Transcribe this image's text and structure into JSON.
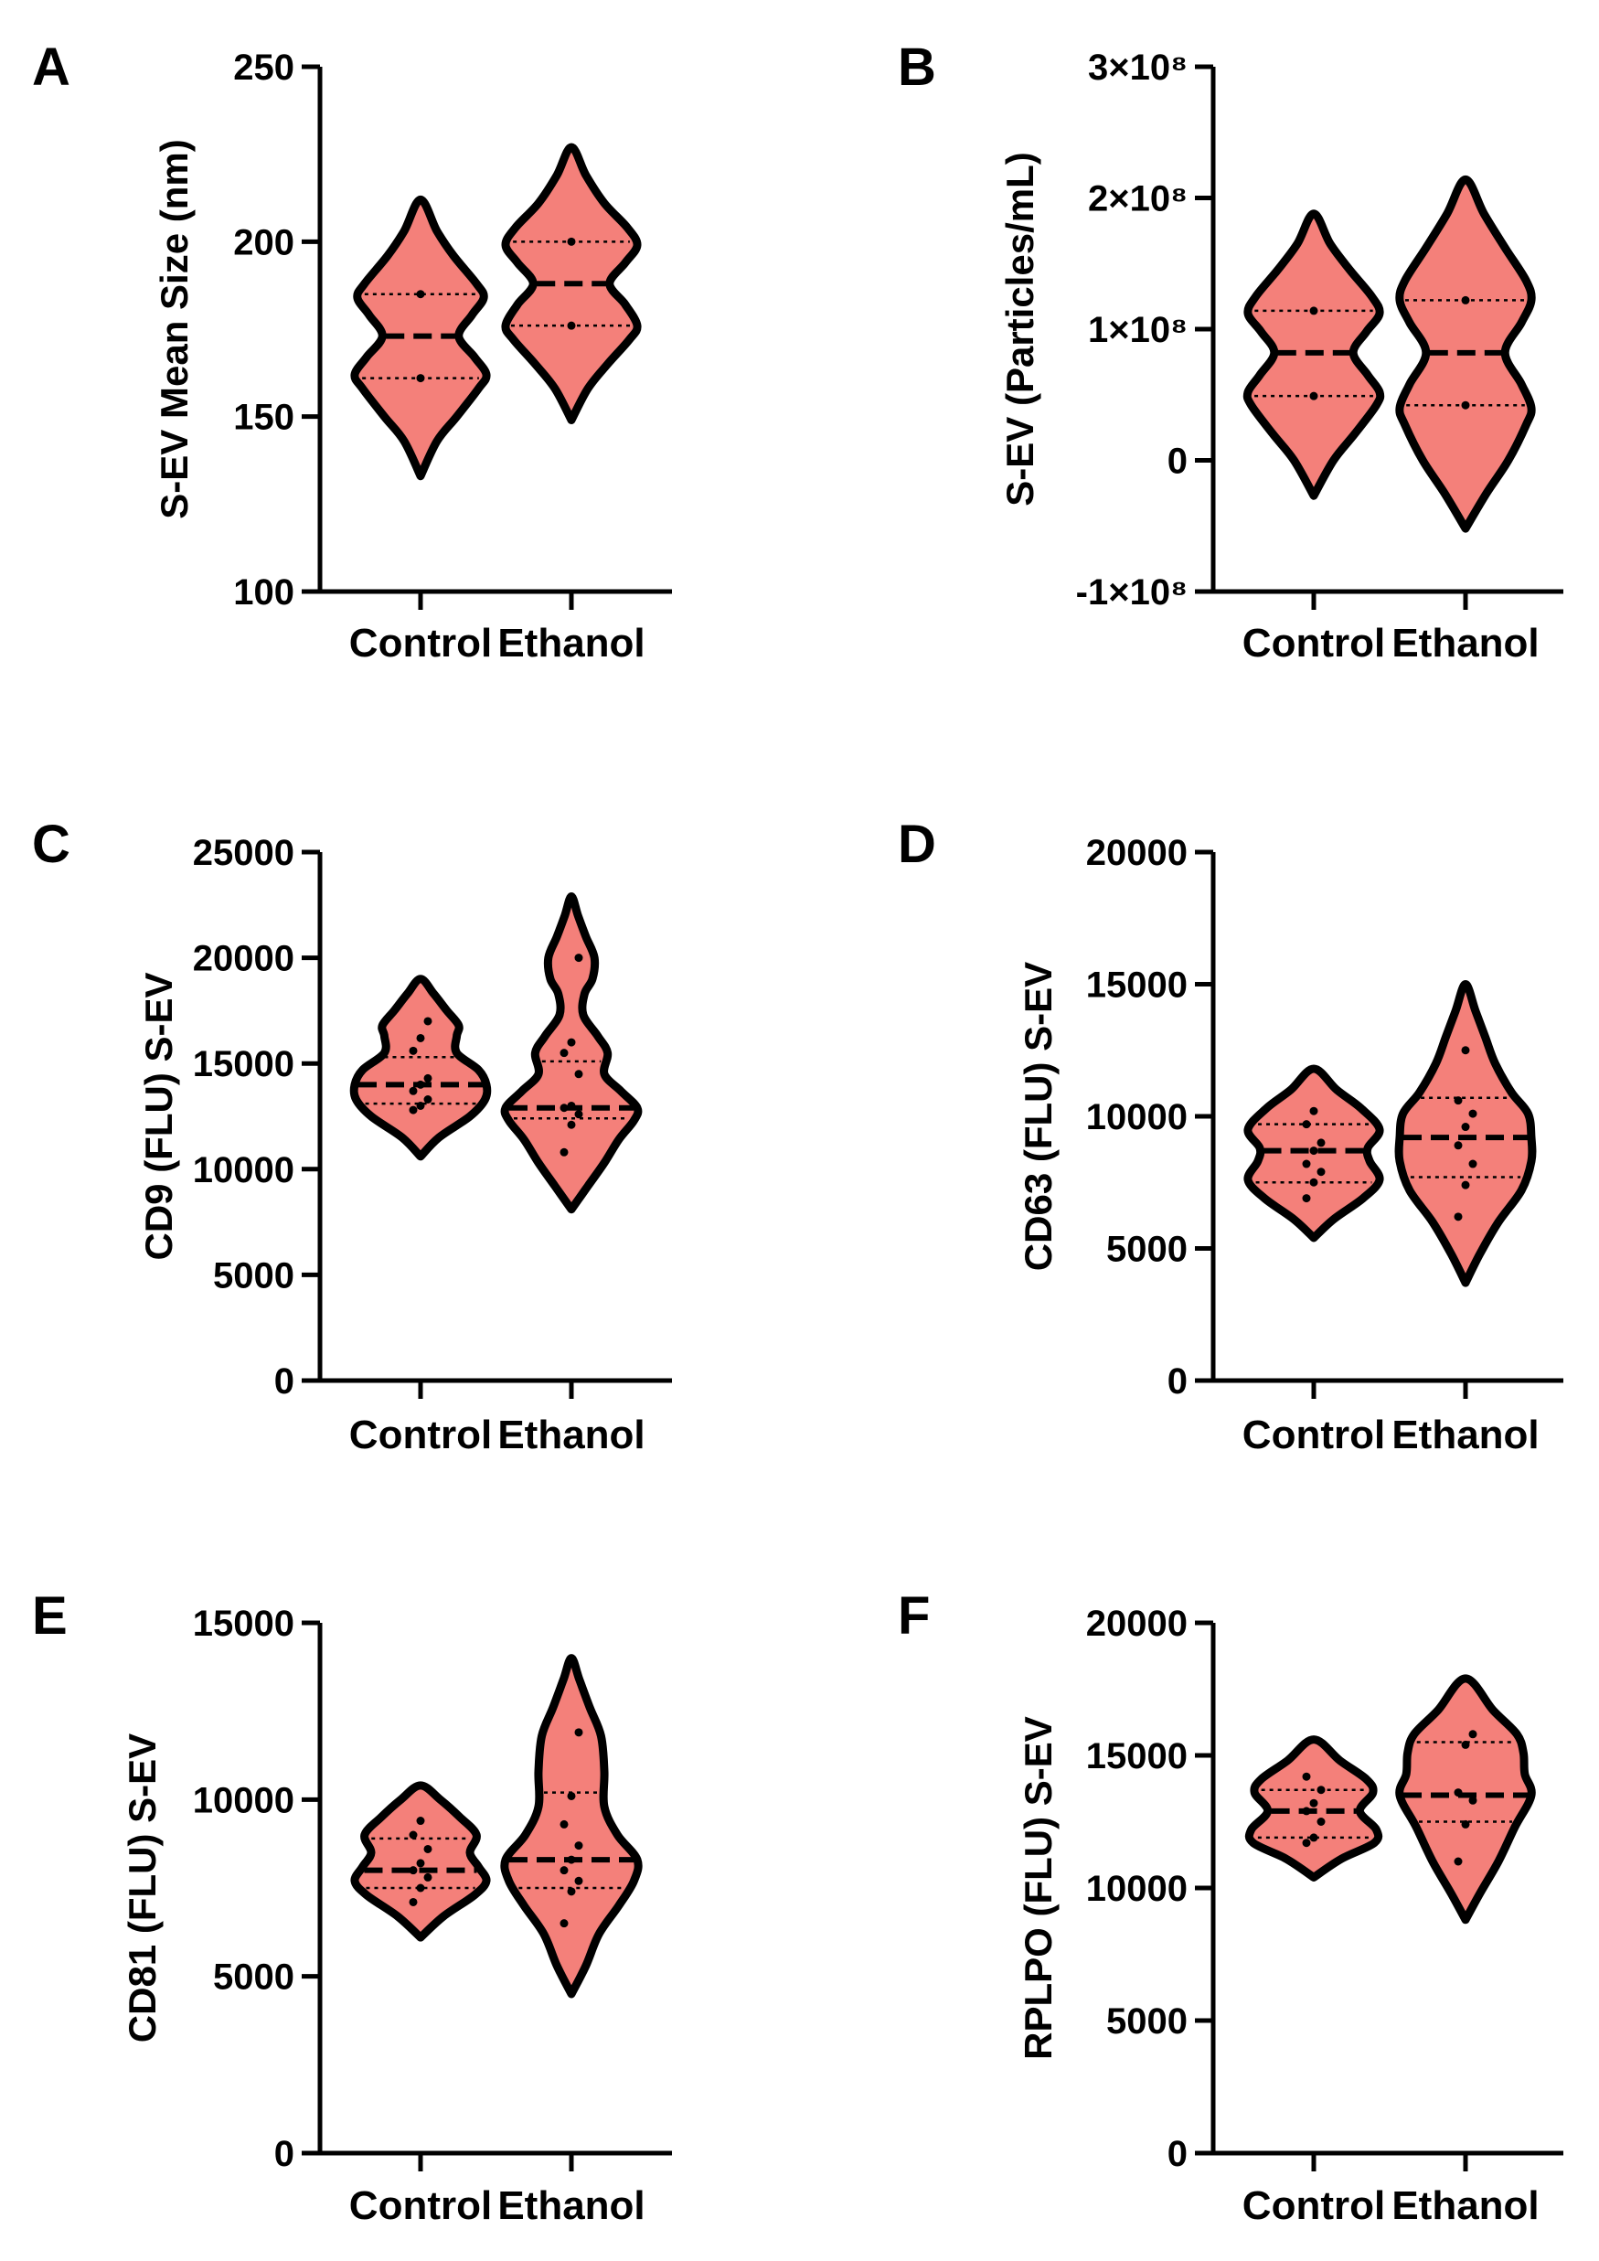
{
  "colors": {
    "violin_fill": "#f4807a",
    "outline": "#000000"
  },
  "chart_data": [
    {
      "type": "violin",
      "panel": "A",
      "ylabel": "S-EV Mean Size (nm)",
      "categories": [
        "Control",
        "Ethanol"
      ],
      "ylim": [
        100,
        250
      ],
      "yticks": [
        100,
        150,
        200,
        250
      ],
      "ytick_labels": [
        "100",
        "150",
        "200",
        "250"
      ],
      "series": [
        {
          "name": "Control",
          "min": 133,
          "max": 212,
          "median": 173,
          "q1": 161,
          "q3": 185,
          "points": [
            161,
            185
          ],
          "shape": [
            [
              133,
              0
            ],
            [
              143,
              0.25
            ],
            [
              150,
              0.55
            ],
            [
              158,
              0.88
            ],
            [
              162,
              1
            ],
            [
              167,
              0.82
            ],
            [
              173,
              0.58
            ],
            [
              179,
              0.78
            ],
            [
              184,
              0.96
            ],
            [
              188,
              0.85
            ],
            [
              196,
              0.5
            ],
            [
              203,
              0.25
            ],
            [
              212,
              0
            ]
          ]
        },
        {
          "name": "Ethanol",
          "min": 149,
          "max": 227,
          "median": 188,
          "q1": 176,
          "q3": 200,
          "points": [
            176,
            200
          ],
          "shape": [
            [
              149,
              0
            ],
            [
              158,
              0.25
            ],
            [
              165,
              0.55
            ],
            [
              172,
              0.88
            ],
            [
              176,
              1
            ],
            [
              182,
              0.82
            ],
            [
              188,
              0.58
            ],
            [
              194,
              0.82
            ],
            [
              199,
              1
            ],
            [
              204,
              0.85
            ],
            [
              211,
              0.5
            ],
            [
              219,
              0.22
            ],
            [
              227,
              0
            ]
          ]
        }
      ]
    },
    {
      "type": "violin",
      "panel": "B",
      "ylabel": "S-EV (Particles/mL)",
      "categories": [
        "Control",
        "Ethanol"
      ],
      "ylim": [
        -100000000.0,
        300000000.0
      ],
      "yticks": [
        -100000000.0,
        0,
        100000000.0,
        200000000.0,
        300000000.0
      ],
      "ytick_labels": [
        "-1×10⁸",
        "0",
        "1×10⁸",
        "2×10⁸",
        "3×10⁸"
      ],
      "series": [
        {
          "name": "Control",
          "min": -27000000.0,
          "max": 188000000.0,
          "median": 82000000.0,
          "q1": 49000000.0,
          "q3": 114000000.0,
          "points": [
            49000000.0,
            114000000.0
          ],
          "shape": [
            [
              -27000000.0,
              0
            ],
            [
              0,
              0.3
            ],
            [
              20000000.0,
              0.62
            ],
            [
              42000000.0,
              0.95
            ],
            [
              52000000.0,
              1
            ],
            [
              65000000.0,
              0.82
            ],
            [
              82000000.0,
              0.6
            ],
            [
              98000000.0,
              0.8
            ],
            [
              112000000.0,
              1
            ],
            [
              125000000.0,
              0.88
            ],
            [
              145000000.0,
              0.55
            ],
            [
              165000000.0,
              0.25
            ],
            [
              188000000.0,
              0
            ]
          ]
        },
        {
          "name": "Ethanol",
          "min": -52000000.0,
          "max": 214000000.0,
          "median": 82000000.0,
          "q1": 42000000.0,
          "q3": 122000000.0,
          "points": [
            42000000.0,
            122000000.0
          ],
          "shape": [
            [
              -52000000.0,
              0
            ],
            [
              -25000000.0,
              0.32
            ],
            [
              0,
              0.65
            ],
            [
              27000000.0,
              0.92
            ],
            [
              40000000.0,
              1
            ],
            [
              58000000.0,
              0.85
            ],
            [
              82000000.0,
              0.6
            ],
            [
              105000000.0,
              0.85
            ],
            [
              122000000.0,
              1
            ],
            [
              137000000.0,
              0.92
            ],
            [
              162000000.0,
              0.6
            ],
            [
              188000000.0,
              0.28
            ],
            [
              214000000.0,
              0
            ]
          ]
        }
      ]
    },
    {
      "type": "violin",
      "panel": "C",
      "ylabel": "CD9 (FLU) S-EV",
      "categories": [
        "Control",
        "Ethanol"
      ],
      "ylim": [
        0,
        25000
      ],
      "yticks": [
        0,
        5000,
        10000,
        15000,
        20000,
        25000
      ],
      "ytick_labels": [
        "0",
        "5000",
        "10000",
        "15000",
        "20000",
        "25000"
      ],
      "series": [
        {
          "name": "Control",
          "min": 10600,
          "max": 19000,
          "median": 14000,
          "q1": 13100,
          "q3": 15300,
          "points": [
            12800,
            13000,
            13300,
            13700,
            14000,
            14300,
            15600,
            16200,
            17000
          ],
          "shape": [
            [
              10600,
              0
            ],
            [
              11500,
              0.28
            ],
            [
              12500,
              0.75
            ],
            [
              13300,
              0.98
            ],
            [
              14000,
              1
            ],
            [
              14700,
              0.88
            ],
            [
              15500,
              0.55
            ],
            [
              16300,
              0.55
            ],
            [
              16800,
              0.58
            ],
            [
              17500,
              0.4
            ],
            [
              18300,
              0.2
            ],
            [
              19000,
              0
            ]
          ]
        },
        {
          "name": "Ethanol",
          "min": 8100,
          "max": 22900,
          "median": 12900,
          "q1": 12400,
          "q3": 15100,
          "points": [
            10800,
            12100,
            12600,
            12900,
            13000,
            14500,
            15500,
            16000,
            20000
          ],
          "shape": [
            [
              8100,
              0
            ],
            [
              9200,
              0.25
            ],
            [
              10300,
              0.5
            ],
            [
              11400,
              0.72
            ],
            [
              12300,
              0.95
            ],
            [
              12900,
              1
            ],
            [
              13700,
              0.75
            ],
            [
              14500,
              0.5
            ],
            [
              15500,
              0.55
            ],
            [
              16300,
              0.4
            ],
            [
              17300,
              0.18
            ],
            [
              18300,
              0.2
            ],
            [
              19000,
              0.32
            ],
            [
              20000,
              0.35
            ],
            [
              21000,
              0.22
            ],
            [
              22000,
              0.1
            ],
            [
              22900,
              0
            ]
          ]
        }
      ]
    },
    {
      "type": "violin",
      "panel": "D",
      "ylabel": "CD63 (FLU) S-EV",
      "categories": [
        "Control",
        "Ethanol"
      ],
      "ylim": [
        0,
        20000
      ],
      "yticks": [
        0,
        5000,
        10000,
        15000,
        20000
      ],
      "ytick_labels": [
        "0",
        "5000",
        "10000",
        "15000",
        "20000"
      ],
      "series": [
        {
          "name": "Control",
          "min": 5400,
          "max": 11800,
          "median": 8700,
          "q1": 7500,
          "q3": 9700,
          "points": [
            6900,
            7500,
            7900,
            8200,
            8700,
            9000,
            9700,
            10200
          ],
          "shape": [
            [
              5400,
              0
            ],
            [
              6100,
              0.3
            ],
            [
              6900,
              0.75
            ],
            [
              7600,
              1
            ],
            [
              8300,
              0.85
            ],
            [
              8800,
              0.82
            ],
            [
              9500,
              1
            ],
            [
              10300,
              0.72
            ],
            [
              11000,
              0.35
            ],
            [
              11800,
              0
            ]
          ]
        },
        {
          "name": "Ethanol",
          "min": 3700,
          "max": 15000,
          "median": 9200,
          "q1": 7700,
          "q3": 10700,
          "points": [
            6200,
            7400,
            8200,
            8900,
            9600,
            10100,
            10600,
            12500
          ],
          "shape": [
            [
              3700,
              0
            ],
            [
              4800,
              0.22
            ],
            [
              6000,
              0.5
            ],
            [
              7200,
              0.85
            ],
            [
              8300,
              1
            ],
            [
              9200,
              1
            ],
            [
              10100,
              0.95
            ],
            [
              10900,
              0.7
            ],
            [
              12000,
              0.45
            ],
            [
              13000,
              0.3
            ],
            [
              14000,
              0.15
            ],
            [
              15000,
              0
            ]
          ]
        }
      ]
    },
    {
      "type": "violin",
      "panel": "E",
      "ylabel": "CD81 (FLU) S-EV",
      "categories": [
        "Control",
        "Ethanol"
      ],
      "ylim": [
        0,
        15000
      ],
      "yticks": [
        0,
        5000,
        10000,
        15000
      ],
      "ytick_labels": [
        "0",
        "5000",
        "10000",
        "15000"
      ],
      "series": [
        {
          "name": "Control",
          "min": 6100,
          "max": 10400,
          "median": 8000,
          "q1": 7500,
          "q3": 8900,
          "points": [
            7100,
            7500,
            7800,
            8000,
            8200,
            8600,
            9000,
            9400
          ],
          "shape": [
            [
              6100,
              0
            ],
            [
              6700,
              0.35
            ],
            [
              7300,
              0.82
            ],
            [
              7700,
              1
            ],
            [
              8100,
              0.88
            ],
            [
              8500,
              0.75
            ],
            [
              9000,
              0.85
            ],
            [
              9500,
              0.6
            ],
            [
              10000,
              0.3
            ],
            [
              10400,
              0
            ]
          ]
        },
        {
          "name": "Ethanol",
          "min": 4500,
          "max": 14000,
          "median": 8300,
          "q1": 7500,
          "q3": 10200,
          "points": [
            6500,
            7400,
            7700,
            8000,
            8300,
            8700,
            9300,
            10100,
            11900
          ],
          "shape": [
            [
              4500,
              0
            ],
            [
              5300,
              0.22
            ],
            [
              6200,
              0.42
            ],
            [
              7000,
              0.72
            ],
            [
              7700,
              0.95
            ],
            [
              8300,
              1
            ],
            [
              9000,
              0.7
            ],
            [
              9800,
              0.5
            ],
            [
              10800,
              0.5
            ],
            [
              11800,
              0.45
            ],
            [
              12600,
              0.28
            ],
            [
              13400,
              0.12
            ],
            [
              14000,
              0
            ]
          ]
        }
      ]
    },
    {
      "type": "violin",
      "panel": "F",
      "ylabel": "RPLPO (FLU) S-EV",
      "categories": [
        "Control",
        "Ethanol"
      ],
      "ylim": [
        0,
        20000
      ],
      "yticks": [
        0,
        5000,
        10000,
        15000,
        20000
      ],
      "ytick_labels": [
        "0",
        "5000",
        "10000",
        "15000",
        "20000"
      ],
      "series": [
        {
          "name": "Control",
          "min": 10400,
          "max": 15600,
          "median": 12900,
          "q1": 11900,
          "q3": 13700,
          "points": [
            11700,
            11900,
            12500,
            12900,
            13200,
            13700,
            14200
          ],
          "shape": [
            [
              10400,
              0
            ],
            [
              11100,
              0.42
            ],
            [
              11700,
              0.92
            ],
            [
              12200,
              0.95
            ],
            [
              12900,
              0.7
            ],
            [
              13600,
              0.9
            ],
            [
              14100,
              0.8
            ],
            [
              14800,
              0.4
            ],
            [
              15600,
              0
            ]
          ]
        },
        {
          "name": "Ethanol",
          "min": 8800,
          "max": 17900,
          "median": 13500,
          "q1": 12500,
          "q3": 15500,
          "points": [
            11000,
            12400,
            13300,
            13600,
            15400,
            15800
          ],
          "shape": [
            [
              8800,
              0
            ],
            [
              9800,
              0.22
            ],
            [
              11000,
              0.5
            ],
            [
              12300,
              0.75
            ],
            [
              13500,
              1
            ],
            [
              14300,
              0.9
            ],
            [
              15100,
              0.88
            ],
            [
              15800,
              0.78
            ],
            [
              16700,
              0.42
            ],
            [
              17900,
              0
            ]
          ]
        }
      ]
    }
  ]
}
